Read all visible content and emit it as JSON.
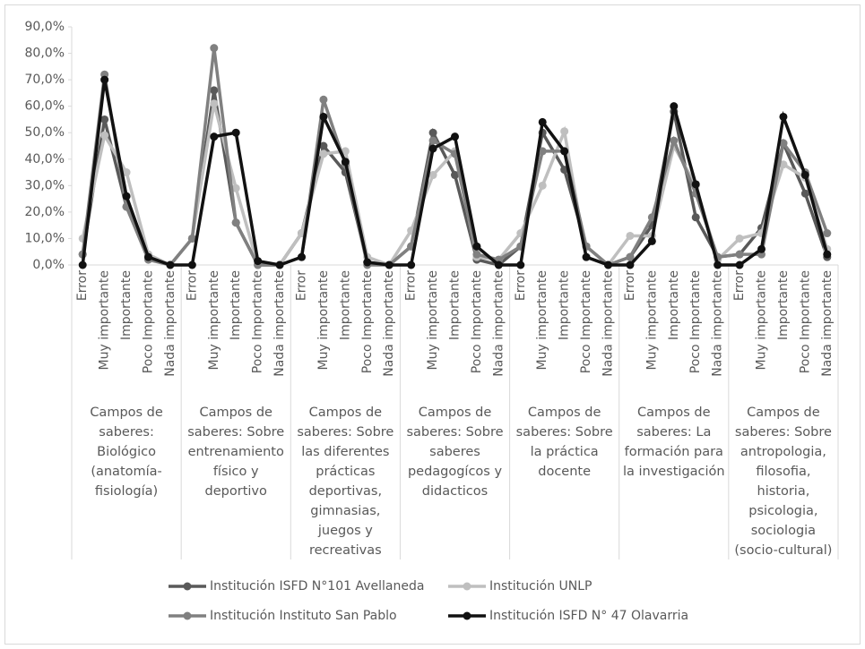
{
  "chart_data": {
    "type": "line",
    "categories": [
      "Error",
      "Muy importante",
      "Importante",
      "Poco Importante",
      "Nada importante",
      "Error",
      "Muy importante",
      "Importante",
      "Poco Importante",
      "Nada importante",
      "Error",
      "Muy importante",
      "Importante",
      "Poco Importante",
      "Nada importante",
      "Error",
      "Muy importante",
      "Importante",
      "Poco Importante",
      "Nada importante",
      "Error",
      "Muy importante",
      "Importante",
      "Poco Importante",
      "Nada importante",
      "Error",
      "Muy importante",
      "Importante",
      "Poco Importante",
      "Nada importante",
      "Error",
      "Muy importante",
      "Importante",
      "Poco Importante",
      "Nada importante"
    ],
    "groups": [
      "Campos de saberes: Biológico (anatomía-fisiología)",
      "Campos de saberes: Sobre entrenamiento físico y deportivo",
      "Campos de saberes: Sobre las diferentes prácticas deportivas, gimnasias, juegos y recreativas",
      "Campos de saberes: Sobre saberes pedagogícos y didacticos",
      "Campos de saberes: Sobre la práctica docente",
      "Campos de saberes: La formación para la investigación",
      "Campos de saberes: Sobre antropologia, filosofia, historia, psicologia, sociologia (socio-cultural)"
    ],
    "series": [
      {
        "name": "Institución ISFD N°101 Avellaneda",
        "color": "#595959",
        "values": [
          4,
          55,
          22,
          3,
          0,
          10,
          66,
          16,
          0,
          0,
          12,
          45,
          35,
          1,
          0,
          7,
          50,
          34,
          2,
          0,
          7,
          50,
          36,
          7,
          0,
          3,
          15,
          58,
          18,
          3,
          4,
          14,
          46,
          27,
          3
        ]
      },
      {
        "name": "Institución UNLP",
        "color": "#bfbfbf",
        "values": [
          10,
          49,
          35,
          4,
          0,
          10,
          61,
          29,
          0,
          0,
          12,
          42,
          43,
          3,
          0,
          13,
          34,
          43,
          3,
          2,
          12,
          30,
          50.5,
          3,
          0,
          11,
          11,
          45,
          30,
          2,
          10,
          12,
          38,
          33,
          6
        ]
      },
      {
        "name": "Institución Instituto San Pablo",
        "color": "#808080",
        "values": [
          4,
          72,
          22,
          2,
          0,
          10,
          82,
          16,
          0,
          0,
          3,
          62.5,
          38,
          0,
          0,
          7,
          47,
          42,
          4,
          2,
          7,
          43,
          43,
          7,
          0,
          3,
          18,
          47,
          27,
          3,
          4,
          4,
          46,
          35,
          12
        ]
      },
      {
        "name": "Institución ISFD N° 47 Olavarria",
        "color": "#111111",
        "values": [
          0,
          70,
          26,
          3,
          0,
          0,
          48.5,
          50,
          1.5,
          0,
          3,
          56,
          39,
          1,
          0,
          0,
          44,
          48.5,
          7,
          0,
          0,
          54,
          43,
          3,
          0,
          0,
          9,
          60,
          30.5,
          0,
          0,
          6,
          56,
          34,
          4
        ]
      }
    ],
    "ylim": [
      0,
      90
    ],
    "yticks": [
      {
        "value": 0,
        "label": "0,0%"
      },
      {
        "value": 10,
        "label": "10,0%"
      },
      {
        "value": 20,
        "label": "20,0%"
      },
      {
        "value": 30,
        "label": "30,0%"
      },
      {
        "value": 40,
        "label": "40,0%"
      },
      {
        "value": 50,
        "label": "50,0%"
      },
      {
        "value": 60,
        "label": "60,0%"
      },
      {
        "value": 70,
        "label": "70,0%"
      },
      {
        "value": 80,
        "label": "80,0%"
      },
      {
        "value": 90,
        "label": "90,0%"
      }
    ],
    "grid": false,
    "legend": "bottom"
  }
}
